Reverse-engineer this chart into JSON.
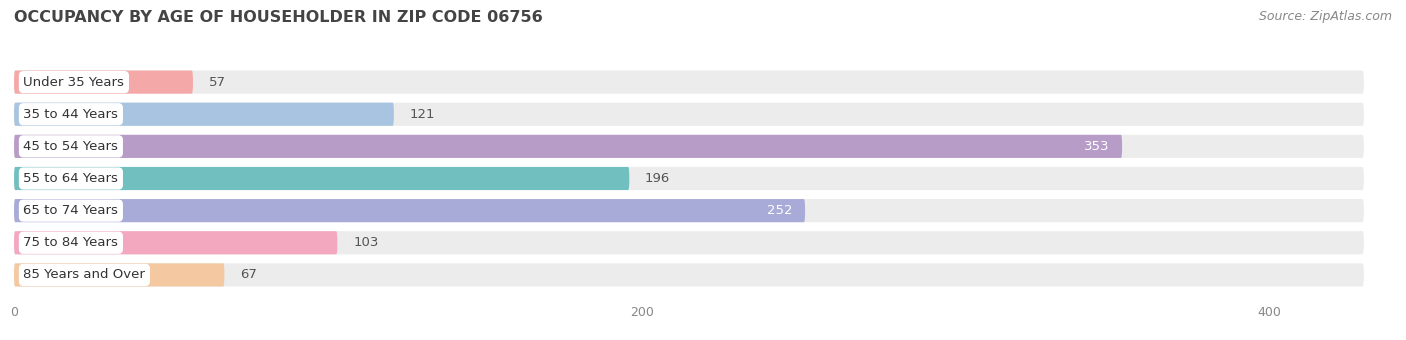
{
  "title": "OCCUPANCY BY AGE OF HOUSEHOLDER IN ZIP CODE 06756",
  "source": "Source: ZipAtlas.com",
  "categories": [
    "Under 35 Years",
    "35 to 44 Years",
    "45 to 54 Years",
    "55 to 64 Years",
    "65 to 74 Years",
    "75 to 84 Years",
    "85 Years and Over"
  ],
  "values": [
    57,
    121,
    353,
    196,
    252,
    103,
    67
  ],
  "bar_colors": [
    "#f4a9a8",
    "#a8c4e0",
    "#b89cc8",
    "#72bfbf",
    "#a8aad8",
    "#f4a8c0",
    "#f4c8a0"
  ],
  "xlim": [
    0,
    430
  ],
  "xticks": [
    0,
    200,
    400
  ],
  "background_color": "#ffffff",
  "bar_background_color": "#ececec",
  "title_fontsize": 11.5,
  "label_fontsize": 9.5,
  "value_fontsize": 9.5,
  "source_fontsize": 9
}
